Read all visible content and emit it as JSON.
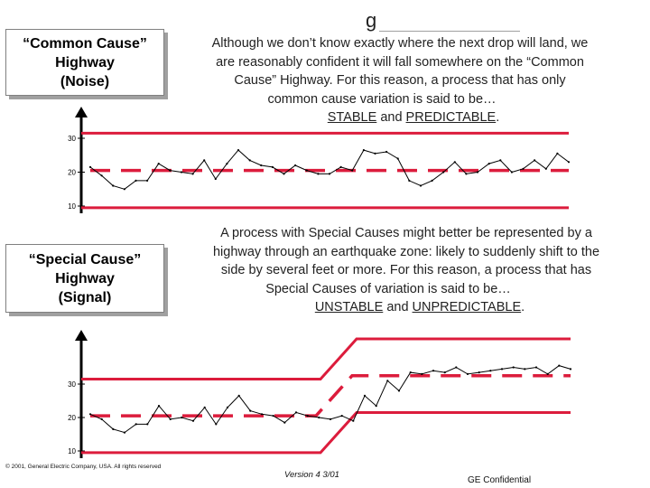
{
  "header": {
    "letter": "g"
  },
  "common": {
    "box_lines": [
      "“Common Cause”",
      "Highway",
      "(Noise)"
    ],
    "text_lines": [
      "Although we don’t know exactly where the next drop will land, we",
      "are reasonably confident it will fall somewhere on the “Common",
      "Cause” Highway.  For this reason, a process that has only",
      "common cause variation is said to be…"
    ],
    "emphasis": {
      "w1": "STABLE",
      "mid": " and ",
      "w2": "PREDICTABLE",
      "end": "."
    }
  },
  "special": {
    "box_lines": [
      "“Special Cause”",
      "Highway",
      "(Signal)"
    ],
    "text_lines": [
      "A process with Special Causes might better be represented by a",
      "highway through an earthquake zone:  likely to suddenly shift to the",
      "side by several feet or more.  For this reason, a process that has",
      "Special Causes of variation is said to be…"
    ],
    "emphasis": {
      "w1": "UNSTABLE",
      "mid": " and ",
      "w2": "UNPREDICTABLE",
      "end": "."
    }
  },
  "chart_data": [
    {
      "type": "line",
      "yticks": [
        30,
        20,
        10
      ],
      "x": [
        1,
        2,
        3,
        4,
        5,
        6,
        7,
        8,
        9,
        10,
        11,
        12,
        13,
        14,
        15,
        16,
        17,
        18,
        19,
        20,
        21,
        22,
        23,
        24,
        25,
        26,
        27,
        28,
        29,
        30,
        31,
        32,
        33,
        34,
        35,
        36,
        37,
        38,
        39,
        40,
        41,
        42,
        43
      ],
      "series": [
        {
          "values": [
            21.5,
            19,
            16,
            15,
            17.5,
            17.5,
            22.5,
            20.5,
            20,
            19.5,
            23.5,
            18,
            22.5,
            26.5,
            23.5,
            22,
            21.5,
            19.5,
            22,
            20.5,
            19.5,
            19.5,
            21.5,
            20.5,
            26.5,
            25.5,
            26,
            24,
            17.5,
            16,
            17.5,
            20,
            23,
            19.5,
            20,
            22.5,
            23.5,
            20,
            21,
            23.5,
            21,
            25.5,
            23
          ]
        }
      ],
      "limits": {
        "upper": 31.5,
        "center": 20.5,
        "lower": 9.5
      }
    },
    {
      "type": "line",
      "yticks": [
        30,
        20,
        10
      ],
      "x": [
        1,
        2,
        3,
        4,
        5,
        6,
        7,
        8,
        9,
        10,
        11,
        12,
        13,
        14,
        15,
        16,
        17,
        18,
        19,
        20,
        21,
        22,
        23,
        24,
        25,
        26,
        27,
        28,
        29,
        30,
        31,
        32,
        33,
        34,
        35,
        36,
        37,
        38,
        39,
        40,
        41,
        42,
        43
      ],
      "series": [
        {
          "values": [
            21,
            19.5,
            16.5,
            15.5,
            18,
            18,
            23.5,
            19.5,
            20,
            19,
            23,
            18,
            23,
            26.5,
            22,
            21,
            20.5,
            18.5,
            21.5,
            20.5,
            20,
            19.5,
            20.5,
            19,
            26.5,
            23.5,
            31,
            28,
            33.5,
            33,
            34,
            33.5,
            35,
            33,
            33.5,
            34,
            34.5,
            35,
            34.5,
            35,
            33,
            35.5,
            34.5
          ]
        }
      ],
      "center_before": 20.5,
      "center_after": 32.5,
      "upper_before": 31.5,
      "upper_after": 43.5,
      "lower_before": 9.5,
      "lower_after": 21.5
    }
  ],
  "footer": {
    "copyright": "© 2001, General Electric Company, USA. All rights reserved",
    "version": "Version 4  3/01",
    "confidential": "GE Confidential"
  }
}
